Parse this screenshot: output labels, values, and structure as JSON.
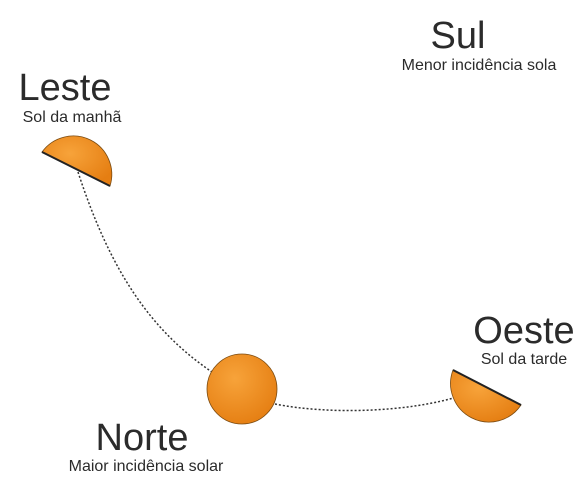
{
  "sul": {
    "label": "Sul",
    "note": "Menor incidência sola"
  },
  "leste": {
    "label": "Leste",
    "note": "Sol da manhã"
  },
  "oeste": {
    "label": "Oeste",
    "note": "Sol da tarde"
  },
  "norte": {
    "label": "Norte",
    "note": "Maior incidência solar"
  }
}
